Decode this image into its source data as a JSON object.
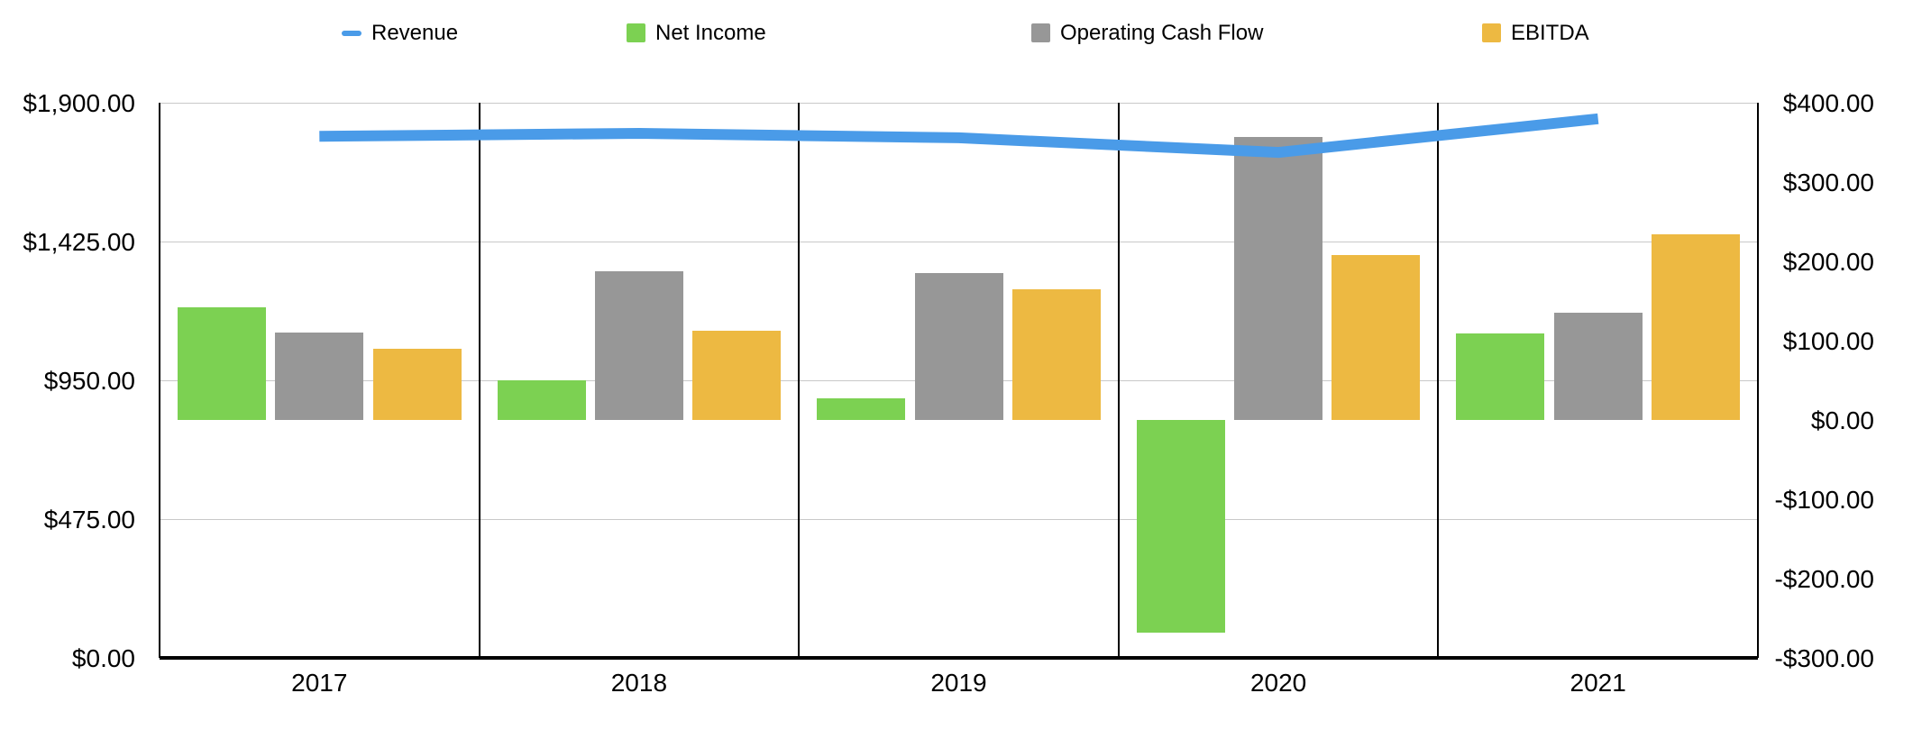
{
  "chart_data": {
    "type": "combo",
    "title": "",
    "categories": [
      "2017",
      "2018",
      "2019",
      "2020",
      "2021"
    ],
    "series": [
      {
        "name": "Revenue",
        "type": "line",
        "axis": "left",
        "swatch": "line-dash",
        "color": "#4A9BE8",
        "values": [
          1785,
          1795,
          1780,
          1730,
          1845
        ]
      },
      {
        "name": "Net Income",
        "type": "bar",
        "axis": "right",
        "swatch": "square",
        "color": "#7CD152",
        "values": [
          142,
          50,
          27,
          -268,
          109
        ]
      },
      {
        "name": "Operating Cash Flow",
        "type": "bar",
        "axis": "right",
        "swatch": "square",
        "color": "#979797",
        "values": [
          110,
          187,
          185,
          357,
          135
        ]
      },
      {
        "name": "EBITDA",
        "type": "bar",
        "axis": "right",
        "swatch": "square",
        "color": "#EDB942",
        "values": [
          90,
          112,
          165,
          208,
          234
        ]
      }
    ],
    "left_axis": {
      "min": 0,
      "max": 1900,
      "step": 475,
      "tick_labels": [
        "$0.00",
        "$475.00",
        "$950.00",
        "$1,425.00",
        "$1,900.00"
      ]
    },
    "right_axis": {
      "min": -300,
      "max": 400,
      "step": 100,
      "tick_labels": [
        "-$300.00",
        "-$200.00",
        "-$100.00",
        "$0.00",
        "$100.00",
        "$200.00",
        "$300.00",
        "$400.00"
      ]
    },
    "value_format": "$#,##0.00",
    "grid": "horizontal lines at left-axis ticks; vertical black divider between each category panel",
    "legend_position": "top",
    "colors": {
      "gridline": "#C9C9C9",
      "axis": "#000000",
      "background": "#FFFFFF",
      "text": "#000000"
    }
  }
}
